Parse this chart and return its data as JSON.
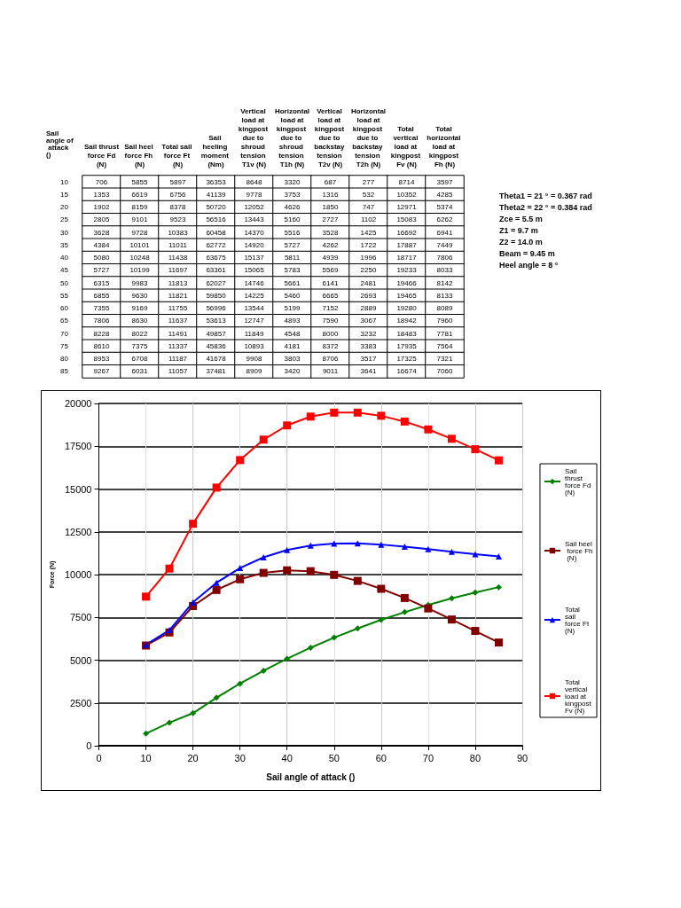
{
  "chart_data": [
    {
      "type": "heatmap",
      "ylabel": "Sail angle of attack ()",
      "data_labels": true,
      "categories": [
        "Sail thrust force Fd (N)",
        "Sail heel force Fh (N)",
        "Total sail force Ft (N)",
        "Sail heeling moment (Nm)",
        "Vertical load at kingpost due to shroud tension T1v (N)",
        "Horizontal load at kingpost due to shroud tension T1h (N)",
        "Vertical load at kingpost due to backstay tension T2v (N)",
        "Horizontal load at kingpost due to backstay tension T2h (N)",
        "Total vertical load at kingpost Fv (N)",
        "Total horizontal load at kingpost Fh (N)"
      ],
      "y_categories": [
        "10",
        "15",
        "20",
        "25",
        "30",
        "35",
        "40",
        "45",
        "50",
        "55",
        "60",
        "65",
        "70",
        "75",
        "80",
        "85"
      ],
      "cells": [
        [
          706,
          5855,
          5897,
          36353,
          8648,
          3320,
          687,
          277,
          8714,
          3597
        ],
        [
          1353,
          6619,
          6756,
          41139,
          9778,
          3753,
          1316,
          532,
          10352,
          4285
        ],
        [
          1902,
          8159,
          8378,
          50720,
          12052,
          4626,
          1850,
          747,
          12971,
          5374
        ],
        [
          2805,
          9101,
          9523,
          56516,
          13443,
          5160,
          2727,
          1102,
          15083,
          6262
        ],
        [
          3628,
          9728,
          10383,
          60458,
          14370,
          5516,
          3528,
          1425,
          16692,
          6941
        ],
        [
          4384,
          10101,
          11011,
          62772,
          14920,
          5727,
          4262,
          1722,
          17887,
          7449
        ],
        [
          5080,
          10248,
          11438,
          63675,
          15137,
          5811,
          4939,
          1996,
          18717,
          7806
        ],
        [
          5727,
          10199,
          11697,
          63361,
          15065,
          5783,
          5569,
          2250,
          19233,
          8033
        ],
        [
          6315,
          9983,
          11813,
          62027,
          14746,
          5661,
          6141,
          2481,
          19466,
          8142
        ],
        [
          6855,
          9630,
          11821,
          59850,
          14225,
          5460,
          6665,
          2693,
          19465,
          8133
        ],
        [
          7355,
          9169,
          11755,
          56996,
          13544,
          5199,
          7152,
          2889,
          19280,
          8089
        ],
        [
          7806,
          8630,
          11637,
          53613,
          12747,
          4893,
          7590,
          3067,
          18942,
          7960
        ],
        [
          8228,
          8022,
          11491,
          49857,
          11849,
          4548,
          8000,
          3232,
          18483,
          7781
        ],
        [
          8610,
          7375,
          11337,
          45836,
          10893,
          4181,
          8372,
          3383,
          17935,
          7564
        ],
        [
          8953,
          6708,
          11187,
          41678,
          9908,
          3803,
          8706,
          3517,
          17325,
          7321
        ],
        [
          9267,
          6031,
          11057,
          37481,
          8909,
          3420,
          9011,
          3641,
          16674,
          7060
        ]
      ],
      "annotations": [
        "Theta1 = 21 ° = 0.367 rad",
        "Theta2 = 22 ° = 0.384 rad",
        "Zce = 5.5 m",
        "Z1 = 9.7 m",
        "Z2 = 14.0 m",
        "Beam = 9.45 m",
        "Heel angle = 8 °"
      ]
    },
    {
      "type": "line",
      "xlabel": "Sail angle of attack ()",
      "ylabel": "Force (N)",
      "x": [
        10,
        15,
        20,
        25,
        30,
        35,
        40,
        45,
        50,
        55,
        60,
        65,
        70,
        75,
        80,
        85
      ],
      "xlim": [
        0,
        90
      ],
      "xticks": [
        0,
        10,
        20,
        30,
        40,
        50,
        60,
        70,
        80,
        90
      ],
      "ylim": [
        0,
        20000
      ],
      "yticks": [
        0,
        2500,
        5000,
        7500,
        10000,
        12500,
        15000,
        17500,
        20000
      ],
      "grid": true,
      "legend": "right",
      "series": [
        {
          "name": "Sail thrust force Fd (N)",
          "color": "#008000",
          "marker": "diamond",
          "values": [
            706,
            1353,
            1902,
            2805,
            3628,
            4384,
            5080,
            5727,
            6315,
            6855,
            7355,
            7806,
            8228,
            8610,
            8953,
            9267
          ]
        },
        {
          "name": "Sail heel force Fh (N)",
          "color": "#800000",
          "marker": "square",
          "values": [
            5855,
            6619,
            8159,
            9101,
            9728,
            10101,
            10248,
            10199,
            9983,
            9630,
            9169,
            8630,
            8022,
            7375,
            6708,
            6031
          ]
        },
        {
          "name": "Total sail force Ft (N)",
          "color": "#0000ff",
          "marker": "triangle",
          "values": [
            5897,
            6756,
            8378,
            9523,
            10383,
            11011,
            11438,
            11697,
            11813,
            11821,
            11755,
            11637,
            11491,
            11337,
            11187,
            11057
          ]
        },
        {
          "name": "Total vertical load at kingpost Fv (N)",
          "color": "#ff0000",
          "marker": "square",
          "values": [
            8714,
            10352,
            12971,
            15083,
            16692,
            17887,
            18717,
            19233,
            19466,
            19465,
            19280,
            18942,
            18483,
            17935,
            17325,
            16674
          ]
        }
      ]
    }
  ]
}
